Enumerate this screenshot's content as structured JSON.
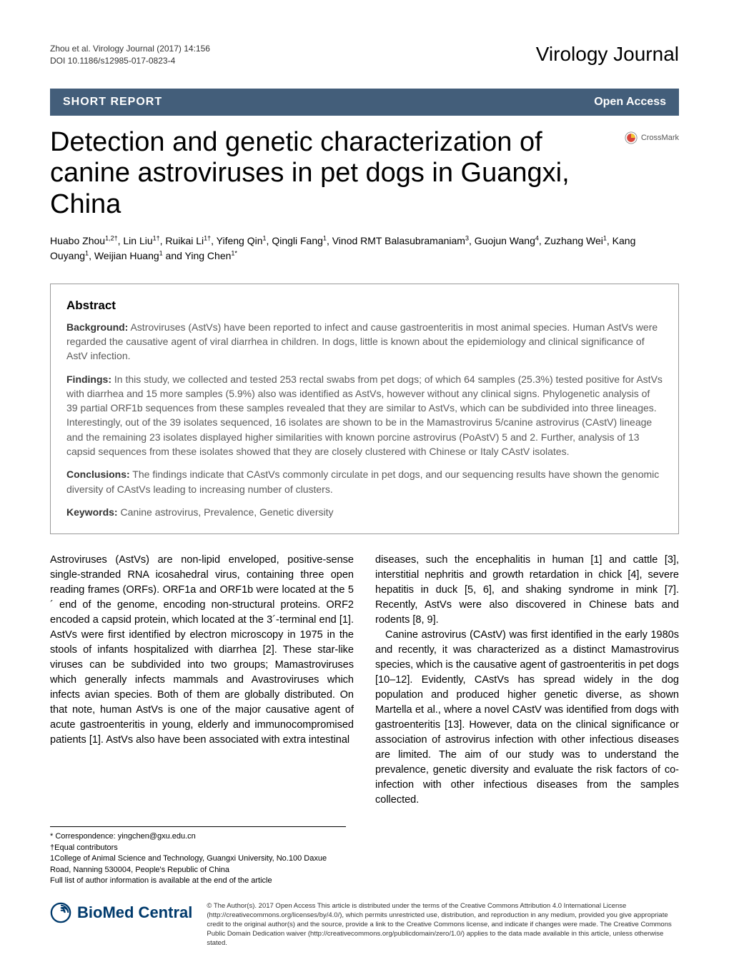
{
  "header": {
    "citation": "Zhou et al. Virology Journal  (2017) 14:156",
    "doi": "DOI 10.1186/s12985-017-0823-4",
    "journal": "Virology Journal"
  },
  "banner": {
    "section": "SHORT REPORT",
    "access": "Open Access"
  },
  "crossmark_label": "CrossMark",
  "title": "Detection and genetic characterization of canine astroviruses in pet dogs in Guangxi, China",
  "authors_html": "Huabo Zhou<sup>1,2†</sup>, Lin Liu<sup>1†</sup>, Ruikai Li<sup>1†</sup>, Yifeng Qin<sup>1</sup>, Qingli Fang<sup>1</sup>, Vinod RMT Balasubramaniam<sup>3</sup>, Guojun Wang<sup>4</sup>, Zuzhang Wei<sup>1</sup>, Kang Ouyang<sup>1</sup>, Weijian Huang<sup>1</sup> and Ying Chen<sup>1*</sup>",
  "abstract": {
    "heading": "Abstract",
    "background_label": "Background:",
    "background": " Astroviruses (AstVs) have been reported to infect and cause gastroenteritis in most animal species. Human AstVs were regarded the causative agent of viral diarrhea in children. In dogs, little is known about the epidemiology and clinical significance of AstV infection.",
    "findings_label": "Findings:",
    "findings": " In this study, we collected and tested 253 rectal swabs from pet dogs; of which 64 samples (25.3%) tested positive for AstVs with diarrhea and 15 more samples (5.9%) also was identified as AstVs, however without any clinical signs. Phylogenetic analysis of 39 partial ORF1b sequences from these samples revealed that they are similar to AstVs, which can be subdivided into three lineages. Interestingly, out of the 39 isolates sequenced, 16 isolates are shown to be in the Mamastrovirus 5/canine astrovirus (CAstV) lineage and the remaining 23 isolates displayed higher similarities with known porcine astrovirus (PoAstV) 5 and 2. Further, analysis of 13 capsid sequences from these isolates showed that they are closely clustered with Chinese or Italy CAstV isolates.",
    "conclusions_label": "Conclusions:",
    "conclusions": " The findings indicate that CAstVs commonly circulate in pet dogs, and our sequencing results have shown the genomic diversity of CAstVs leading to increasing number of clusters.",
    "keywords_label": "Keywords:",
    "keywords": " Canine astrovirus, Prevalence, Genetic diversity"
  },
  "body": {
    "col1_p1": "Astroviruses (AstVs) are non-lipid enveloped, positive-sense single-stranded RNA icosahedral virus, containing three open reading frames (ORFs). ORF1a and ORF1b were located at the 5´ end of the genome, encoding non-structural proteins. ORF2 encoded a capsid protein, which located at the 3´-terminal end [1]. AstVs were first identified by electron microscopy in 1975 in the stools of infants hospitalized with diarrhea [2]. These star-like viruses can be subdivided into two groups; Mamastroviruses which generally infects mammals and Avastroviruses which infects avian species. Both of them are globally distributed. On that note, human AstVs is one of the major causative agent of acute gastroenteritis in young, elderly and immunocompromised patients [1]. AstVs also have been associated with extra intestinal",
    "col2_p1": "diseases, such the encephalitis in human [1] and cattle [3], interstitial nephritis and growth retardation in chick [4], severe hepatitis in duck [5, 6], and shaking syndrome in mink [7]. Recently, AstVs were also discovered in Chinese bats and rodents [8, 9].",
    "col2_p2": "Canine astrovirus (CAstV) was first identified in the early 1980s and recently, it was characterized as a distinct Mamastrovirus species, which is the causative agent of gastroenteritis in pet dogs [10–12]. Evidently, CAstVs has spread widely in the dog population and produced higher genetic diverse, as shown Martella et al., where a novel CAstV was identified from dogs with gastroenteritis [13]. However, data on the clinical significance or association of astrovirus infection with other infectious diseases are limited. The aim of our study was to understand the prevalence, genetic diversity and evaluate the risk factors of co-infection with other infectious diseases from the samples collected."
  },
  "footnotes": {
    "correspondence": "* Correspondence: yingchen@gxu.edu.cn",
    "equal": "†Equal contributors",
    "affil": "1College of Animal Science and Technology, Guangxi University, No.100 Daxue Road, Nanning 530004, People's Republic of China",
    "full": "Full list of author information is available at the end of the article"
  },
  "footer": {
    "logo_text": "BioMed Central",
    "license": "© The Author(s). 2017 Open Access This article is distributed under the terms of the Creative Commons Attribution 4.0 International License (http://creativecommons.org/licenses/by/4.0/), which permits unrestricted use, distribution, and reproduction in any medium, provided you give appropriate credit to the original author(s) and the source, provide a link to the Creative Commons license, and indicate if changes were made. The Creative Commons Public Domain Dedication waiver (http://creativecommons.org/publicdomain/zero/1.0/) applies to the data made available in this article, unless otherwise stated."
  },
  "colors": {
    "banner_bg": "#435e7a",
    "banner_text": "#ffffff",
    "text": "#000000",
    "abstract_text": "#5a5a5a",
    "crossmark_red": "#d8453c",
    "crossmark_yellow": "#f2c430",
    "bmc_blue": "#003a6c"
  }
}
